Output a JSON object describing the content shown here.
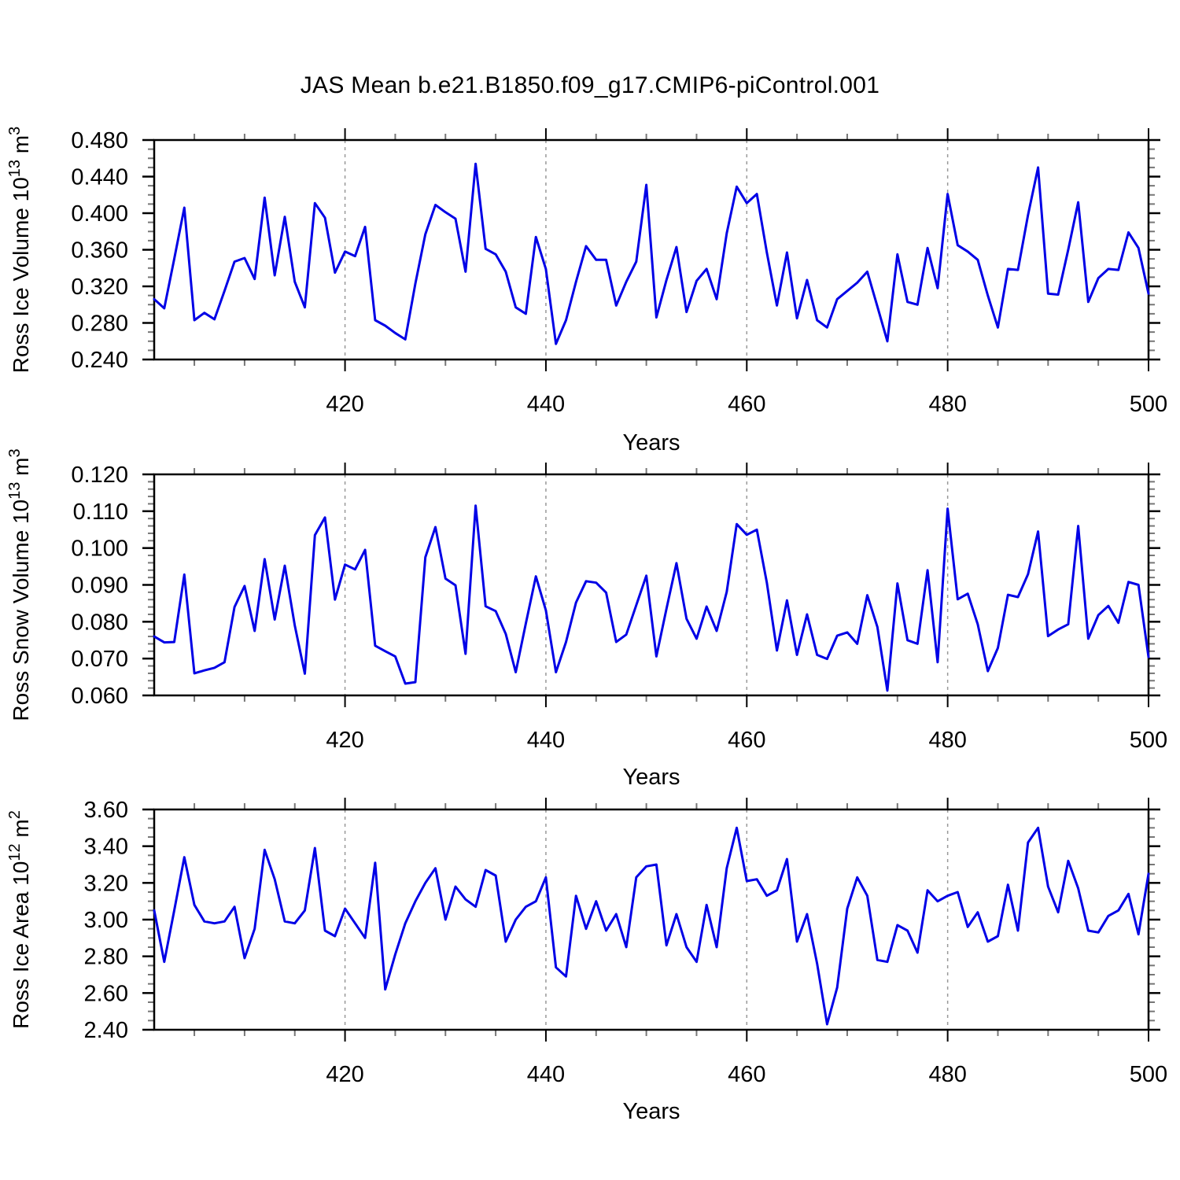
{
  "title": "JAS Mean b.e21.B1850.f09_g17.CMIP6-piControl.001",
  "x_axis": {
    "label": "Years",
    "start": 401,
    "end": 500,
    "major_tick_labels": [
      "420",
      "440",
      "460",
      "480",
      "500"
    ],
    "minor_step": 5,
    "grid_years": [
      420,
      440,
      460,
      480
    ]
  },
  "style": {
    "line_color": "#0000e6",
    "grid_color": "#999999",
    "axis_color": "#000000",
    "minor_tick_color": "#777777"
  },
  "chart_data": [
    {
      "type": "line",
      "name": "ross-ice-volume",
      "ylabel_text": "Ross Ice Volume 10^13 m^3",
      "ylabel_parts": [
        [
          "t",
          "Ross Ice Volume 10"
        ],
        [
          "s",
          "13"
        ],
        [
          "t",
          " m"
        ],
        [
          "s",
          "3"
        ]
      ],
      "ytick_labels": [
        "0.480",
        "0.440",
        "0.400",
        "0.360",
        "0.320",
        "0.280",
        "0.240"
      ],
      "ylim": [
        0.24,
        0.48
      ],
      "y_minor_step": 0.01,
      "x_years_start": 401,
      "values": [
        0.306,
        0.296,
        0.35,
        0.406,
        0.283,
        0.291,
        0.284,
        0.315,
        0.347,
        0.351,
        0.328,
        0.417,
        0.332,
        0.396,
        0.325,
        0.297,
        0.411,
        0.395,
        0.335,
        0.358,
        0.353,
        0.385,
        0.283,
        0.277,
        0.269,
        0.262,
        0.323,
        0.377,
        0.409,
        0.401,
        0.394,
        0.336,
        0.454,
        0.361,
        0.355,
        0.336,
        0.297,
        0.29,
        0.374,
        0.339,
        0.257,
        0.283,
        0.325,
        0.364,
        0.349,
        0.349,
        0.299,
        0.325,
        0.347,
        0.431,
        0.286,
        0.327,
        0.363,
        0.292,
        0.326,
        0.339,
        0.306,
        0.378,
        0.429,
        0.411,
        0.421,
        0.357,
        0.299,
        0.357,
        0.285,
        0.327,
        0.283,
        0.275,
        0.306,
        0.315,
        0.324,
        0.336,
        0.298,
        0.26,
        0.355,
        0.303,
        0.3,
        0.362,
        0.318,
        0.421,
        0.365,
        0.358,
        0.349,
        0.31,
        0.275,
        0.339,
        0.338,
        0.398,
        0.45,
        0.312,
        0.311,
        0.36,
        0.412,
        0.303,
        0.329,
        0.339,
        0.338,
        0.379,
        0.362,
        0.312
      ]
    },
    {
      "type": "line",
      "name": "ross-snow-volume",
      "ylabel_text": "Ross Snow Volume 10^13 m^3",
      "ylabel_parts": [
        [
          "t",
          "Ross Snow Volume 10"
        ],
        [
          "s",
          "13"
        ],
        [
          "t",
          " m"
        ],
        [
          "s",
          "3"
        ]
      ],
      "ytick_labels": [
        "0.120",
        "0.110",
        "0.100",
        "0.090",
        "0.080",
        "0.070",
        "0.060"
      ],
      "ylim": [
        0.06,
        0.12
      ],
      "y_minor_step": 0.002,
      "x_years_start": 401,
      "values": [
        0.076,
        0.0744,
        0.0745,
        0.0928,
        0.066,
        0.0668,
        0.0675,
        0.069,
        0.084,
        0.0897,
        0.0775,
        0.097,
        0.0806,
        0.0952,
        0.079,
        0.0659,
        0.1035,
        0.1083,
        0.086,
        0.0955,
        0.0942,
        0.0995,
        0.0735,
        0.072,
        0.0706,
        0.0632,
        0.0636,
        0.0975,
        0.1057,
        0.0917,
        0.0899,
        0.0713,
        0.1115,
        0.0842,
        0.0829,
        0.0767,
        0.0663,
        0.0795,
        0.0923,
        0.0831,
        0.0663,
        0.0745,
        0.0852,
        0.091,
        0.0906,
        0.0879,
        0.0745,
        0.0765,
        0.0845,
        0.0925,
        0.0706,
        0.0835,
        0.0959,
        0.0808,
        0.0754,
        0.0841,
        0.0775,
        0.0881,
        0.1065,
        0.1036,
        0.105,
        0.0906,
        0.0722,
        0.0858,
        0.071,
        0.082,
        0.071,
        0.0699,
        0.0762,
        0.0771,
        0.074,
        0.0872,
        0.0786,
        0.0613,
        0.0904,
        0.075,
        0.074,
        0.094,
        0.069,
        0.1107,
        0.0861,
        0.0876,
        0.0793,
        0.0666,
        0.0729,
        0.0873,
        0.0867,
        0.0929,
        0.1045,
        0.0761,
        0.0779,
        0.0793,
        0.106,
        0.0754,
        0.0818,
        0.0843,
        0.0797,
        0.0908,
        0.09,
        0.0704
      ]
    },
    {
      "type": "line",
      "name": "ross-ice-area",
      "ylabel_text": "Ross Ice Area 10^12 m^2",
      "ylabel_parts": [
        [
          "t",
          "Ross Ice Area 10"
        ],
        [
          "s",
          "12"
        ],
        [
          "t",
          " m"
        ],
        [
          "s",
          "2"
        ]
      ],
      "ytick_labels": [
        "3.60",
        "3.40",
        "3.20",
        "3.00",
        "2.80",
        "2.60",
        "2.40"
      ],
      "ylim": [
        2.4,
        3.6
      ],
      "y_minor_step": 0.05,
      "x_years_start": 401,
      "values": [
        3.05,
        2.77,
        3.05,
        3.34,
        3.08,
        2.99,
        2.98,
        2.99,
        3.07,
        2.79,
        2.95,
        3.38,
        3.22,
        2.99,
        2.98,
        3.05,
        3.39,
        2.94,
        2.91,
        3.06,
        2.98,
        2.9,
        3.31,
        2.62,
        2.81,
        2.98,
        3.1,
        3.2,
        3.28,
        3.0,
        3.18,
        3.11,
        3.07,
        3.27,
        3.24,
        2.88,
        3.0,
        3.07,
        3.1,
        3.23,
        2.74,
        2.69,
        3.13,
        2.95,
        3.1,
        2.94,
        3.03,
        2.85,
        3.23,
        3.29,
        3.3,
        2.86,
        3.03,
        2.85,
        2.77,
        3.08,
        2.85,
        3.28,
        3.5,
        3.21,
        3.22,
        3.13,
        3.16,
        3.33,
        2.88,
        3.03,
        2.76,
        2.43,
        2.63,
        3.06,
        3.23,
        3.13,
        2.78,
        2.77,
        2.97,
        2.94,
        2.82,
        3.16,
        3.1,
        3.13,
        3.15,
        2.96,
        3.04,
        2.88,
        2.91,
        3.19,
        2.94,
        3.42,
        3.5,
        3.18,
        3.04,
        3.32,
        3.17,
        2.94,
        2.93,
        3.02,
        3.05,
        3.14,
        2.92,
        3.25
      ]
    }
  ]
}
